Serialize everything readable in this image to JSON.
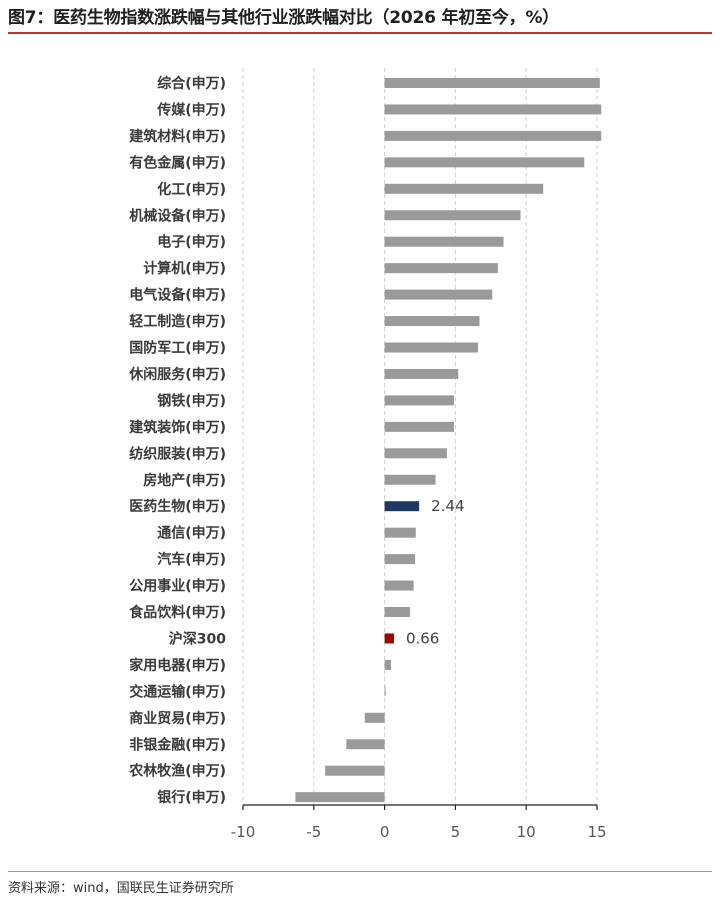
{
  "title": "图7：医药生物指数涨跌幅与其他行业涨跌幅对比（2026 年初至今，%）",
  "source": "资料来源：wind，国联民生证券研究所",
  "colors": {
    "default_bar": "#9a9a9a",
    "highlight_bar": "#203864",
    "benchmark_bar": "#a50000",
    "title_rule": "#c9302c"
  },
  "chart_data": {
    "type": "bar",
    "orientation": "horizontal",
    "title": "图7：医药生物指数涨跌幅与其他行业涨跌幅对比（2026 年初至今，%）",
    "xlabel": "",
    "ylabel": "",
    "xlim": [
      -10,
      15
    ],
    "xticks": [
      "-10",
      "-5",
      "0",
      "5",
      "10",
      "15"
    ],
    "xtick_values": [
      -10,
      -5,
      0,
      5,
      10,
      15
    ],
    "grid": "vertical dashed",
    "legend": "none",
    "categories": [
      "综合(申万)",
      "传媒(申万)",
      "建筑材料(申万)",
      "有色金属(申万)",
      "化工(申万)",
      "机械设备(申万)",
      "电子(申万)",
      "计算机(申万)",
      "电气设备(申万)",
      "轻工制造(申万)",
      "国防军工(申万)",
      "休闲服务(申万)",
      "钢铁(申万)",
      "建筑装饰(申万)",
      "纺织服装(申万)",
      "房地产(申万)",
      "医药生物(申万)",
      "通信(申万)",
      "汽车(申万)",
      "公用事业(申万)",
      "食品饮料(申万)",
      "沪深300",
      "家用电器(申万)",
      "交通运输(申万)",
      "商业贸易(申万)",
      "非银金融(申万)",
      "农林牧渔(申万)",
      "银行(申万)"
    ],
    "values": [
      15.2,
      15.3,
      15.3,
      14.1,
      11.2,
      9.6,
      8.4,
      8.0,
      7.6,
      6.7,
      6.6,
      5.2,
      4.9,
      4.9,
      4.4,
      3.6,
      2.44,
      2.2,
      2.15,
      2.05,
      1.8,
      0.66,
      0.45,
      0.05,
      -1.4,
      -2.7,
      -4.2,
      -6.3
    ],
    "highlight": {
      "医药生物(申万)": "highlight_bar",
      "沪深300": "benchmark_bar"
    },
    "data_labels": [
      {
        "category": "医药生物(申万)",
        "text": "2.44"
      },
      {
        "category": "沪深300",
        "text": "0.66"
      }
    ]
  }
}
